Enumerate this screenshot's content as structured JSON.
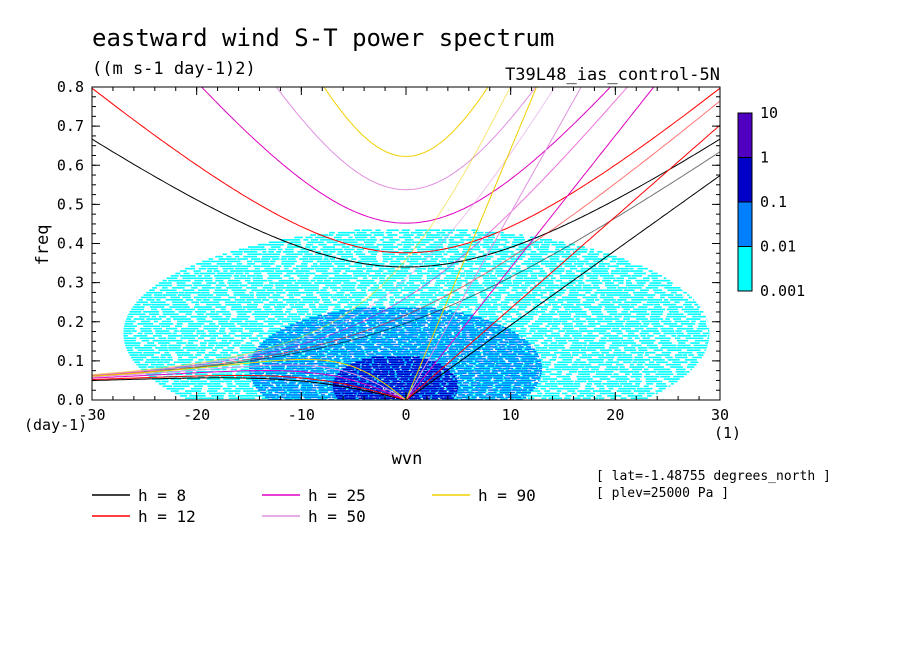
{
  "chart_data": {
    "type": "heatmap",
    "title": "eastward wind S-T power spectrum",
    "subtitle": "((m s-1 day-1)2)",
    "experiment": "T39L48_ias_control-5N",
    "xlabel": "wvn",
    "ylabel": "freq",
    "x_unit": "(1)",
    "y_unit": "(day-1)",
    "xlim": [
      -30,
      30
    ],
    "ylim": [
      0,
      0.8
    ],
    "x_ticks": [
      -30,
      -20,
      -10,
      0,
      10,
      20,
      30
    ],
    "y_ticks": [
      0.0,
      0.1,
      0.2,
      0.3,
      0.4,
      0.5,
      0.6,
      0.7,
      0.8
    ],
    "x_tick_labels": [
      "-30",
      "-20",
      "-10",
      "0",
      "10",
      "20",
      "30"
    ],
    "y_tick_labels": [
      "0.0",
      "0.1",
      "0.2",
      "0.3",
      "0.4",
      "0.5",
      "0.6",
      "0.7",
      "0.8"
    ],
    "colorbar": {
      "levels": [
        "0.001",
        "0.01",
        "0.1",
        "1",
        "10"
      ],
      "colors": [
        "#00ffff",
        "#0080ff",
        "#0000c8",
        "#5000c0"
      ]
    },
    "power_regions": [
      {
        "level": "0.001",
        "color": "#00ffff",
        "cx": 1,
        "cy": 0.17,
        "rx": 28,
        "ry": 0.27
      },
      {
        "level": "0.01",
        "color": "#0080ff",
        "cx": -1,
        "cy": 0.08,
        "rx": 14,
        "ry": 0.16
      },
      {
        "level": "0.1",
        "color": "#0000c8",
        "cx": -1,
        "cy": 0.035,
        "rx": 6,
        "ry": 0.08
      }
    ],
    "dispersion_curves": [
      {
        "h": "8",
        "color": "#000000"
      },
      {
        "h": "12",
        "color": "#ff0000"
      },
      {
        "h": "25",
        "color": "#e000c0"
      },
      {
        "h": "50",
        "color": "#e090e0"
      },
      {
        "h": "90",
        "color": "#f0d000"
      }
    ],
    "legend_placement": "bottom",
    "info": [
      "[ lat=-1.48755 degrees_north ]",
      "[ plev=25000 Pa ]"
    ]
  }
}
